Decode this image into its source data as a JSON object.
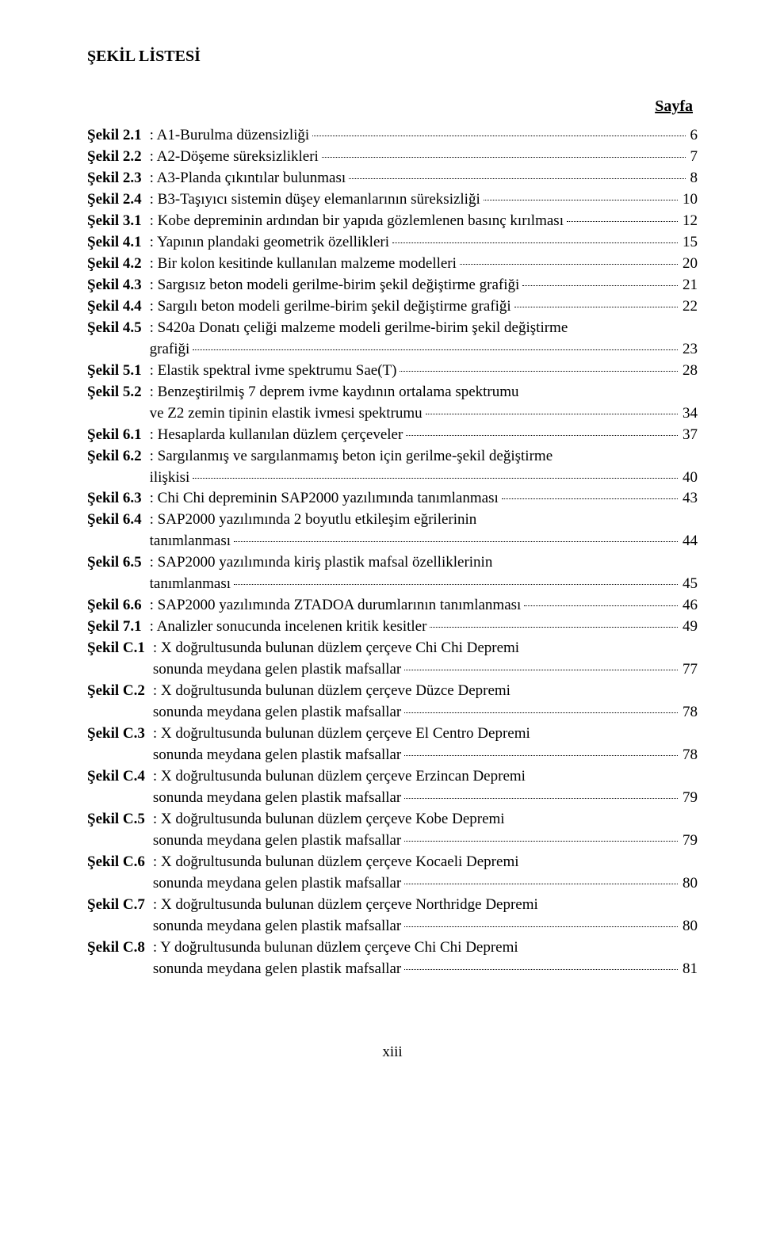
{
  "title": "ŞEKİL LİSTESİ",
  "page_header": "Sayfa",
  "footer": "xiii",
  "entries": [
    {
      "label": "Şekil 2.1",
      "lines": [
        {
          "text": ": A1-Burulma düzensizliği",
          "page": "6"
        }
      ]
    },
    {
      "label": "Şekil 2.2",
      "lines": [
        {
          "text": ": A2-Döşeme süreksizlikleri",
          "page": "7"
        }
      ]
    },
    {
      "label": "Şekil 2.3",
      "lines": [
        {
          "text": ": A3-Planda çıkıntılar bulunması",
          "page": "8"
        }
      ]
    },
    {
      "label": "Şekil 2.4",
      "lines": [
        {
          "text": ": B3-Taşıyıcı sistemin düşey elemanlarının süreksizliği",
          "page": "10"
        }
      ]
    },
    {
      "label": "Şekil 3.1",
      "lines": [
        {
          "text": ": Kobe depreminin ardından bir yapıda gözlemlenen basınç kırılması",
          "page": "12"
        }
      ]
    },
    {
      "label": "Şekil 4.1",
      "lines": [
        {
          "text": ": Yapının plandaki geometrik özellikleri",
          "page": "15"
        }
      ]
    },
    {
      "label": "Şekil 4.2",
      "lines": [
        {
          "text": ": Bir kolon kesitinde kullanılan malzeme modelleri",
          "page": "20"
        }
      ]
    },
    {
      "label": "Şekil 4.3",
      "lines": [
        {
          "text": ": Sargısız beton modeli gerilme-birim şekil değiştirme grafiği",
          "page": "21"
        }
      ]
    },
    {
      "label": "Şekil 4.4",
      "lines": [
        {
          "text": ": Sargılı beton modeli gerilme-birim şekil değiştirme grafiği",
          "page": "22"
        }
      ]
    },
    {
      "label": "Şekil 4.5",
      "lines": [
        {
          "text": ": S420a Donatı çeliği malzeme modeli gerilme-birim şekil değiştirme"
        },
        {
          "text": "grafiği",
          "page": "23"
        }
      ]
    },
    {
      "label": "Şekil 5.1",
      "lines": [
        {
          "text": ": Elastik spektral ivme spektrumu Sae(T)",
          "page": "28"
        }
      ]
    },
    {
      "label": "Şekil 5.2",
      "lines": [
        {
          "text": ": Benzeştirilmiş 7 deprem ivme kaydının ortalama spektrumu"
        },
        {
          "text": "ve Z2 zemin tipinin elastik ivmesi spektrumu",
          "page": "34"
        }
      ]
    },
    {
      "label": "Şekil 6.1",
      "lines": [
        {
          "text": ": Hesaplarda kullanılan düzlem çerçeveler",
          "page": "37"
        }
      ]
    },
    {
      "label": "Şekil 6.2",
      "lines": [
        {
          "text": ": Sargılanmış ve sargılanmamış beton için gerilme-şekil değiştirme"
        },
        {
          "text": "ilişkisi",
          "page": "40"
        }
      ]
    },
    {
      "label": "Şekil 6.3",
      "lines": [
        {
          "text": ": Chi Chi depreminin SAP2000 yazılımında tanımlanması",
          "page": "43"
        }
      ]
    },
    {
      "label": "Şekil 6.4",
      "lines": [
        {
          "text": ": SAP2000 yazılımında 2 boyutlu etkileşim eğrilerinin"
        },
        {
          "text": "tanımlanması",
          "page": "44"
        }
      ]
    },
    {
      "label": "Şekil 6.5",
      "lines": [
        {
          "text": ": SAP2000 yazılımında kiriş plastik mafsal özelliklerinin"
        },
        {
          "text": "tanımlanması",
          "page": "45",
          "continuation_indent": "-10px"
        }
      ]
    },
    {
      "label": "Şekil 6.6",
      "lines": [
        {
          "text": ": SAP2000 yazılımında ZTADOA durumlarının tanımlanması",
          "page": "46"
        }
      ]
    },
    {
      "label": "Şekil 7.1",
      "lines": [
        {
          "text": ": Analizler sonucunda incelenen kritik kesitler",
          "page": "49"
        }
      ]
    },
    {
      "label": "Şekil C.1",
      "lines": [
        {
          "text": ": X doğrultusunda bulunan düzlem çerçeve Chi Chi Depremi"
        },
        {
          "text": "sonunda meydana gelen plastik mafsallar",
          "page": "77"
        }
      ]
    },
    {
      "label": "Şekil C.2",
      "lines": [
        {
          "text": ": X doğrultusunda bulunan düzlem çerçeve Düzce Depremi"
        },
        {
          "text": "sonunda meydana gelen plastik mafsallar",
          "page": "78"
        }
      ]
    },
    {
      "label": "Şekil C.3",
      "lines": [
        {
          "text": ": X doğrultusunda bulunan düzlem çerçeve El Centro Depremi"
        },
        {
          "text": "sonunda meydana gelen plastik mafsallar",
          "page": "78"
        }
      ]
    },
    {
      "label": "Şekil C.4",
      "lines": [
        {
          "text": ": X doğrultusunda bulunan düzlem çerçeve Erzincan Depremi"
        },
        {
          "text": "sonunda meydana gelen plastik mafsallar",
          "page": "79"
        }
      ]
    },
    {
      "label": "Şekil C.5",
      "lines": [
        {
          "text": ": X doğrultusunda bulunan düzlem çerçeve Kobe Depremi"
        },
        {
          "text": "sonunda meydana gelen plastik mafsallar",
          "page": "79"
        }
      ]
    },
    {
      "label": "Şekil C.6",
      "lines": [
        {
          "text": ": X doğrultusunda bulunan düzlem çerçeve Kocaeli Depremi"
        },
        {
          "text": "sonunda meydana gelen plastik mafsallar",
          "page": "80"
        }
      ]
    },
    {
      "label": "Şekil C.7",
      "lines": [
        {
          "text": ": X doğrultusunda bulunan düzlem çerçeve Northridge Depremi"
        },
        {
          "text": "sonunda meydana gelen plastik mafsallar",
          "page": "80"
        }
      ]
    },
    {
      "label": "Şekil C.8",
      "lines": [
        {
          "text": ": Y doğrultusunda bulunan düzlem çerçeve Chi Chi Depremi"
        },
        {
          "text": "sonunda meydana gelen plastik mafsallar",
          "page": "81"
        }
      ]
    }
  ]
}
